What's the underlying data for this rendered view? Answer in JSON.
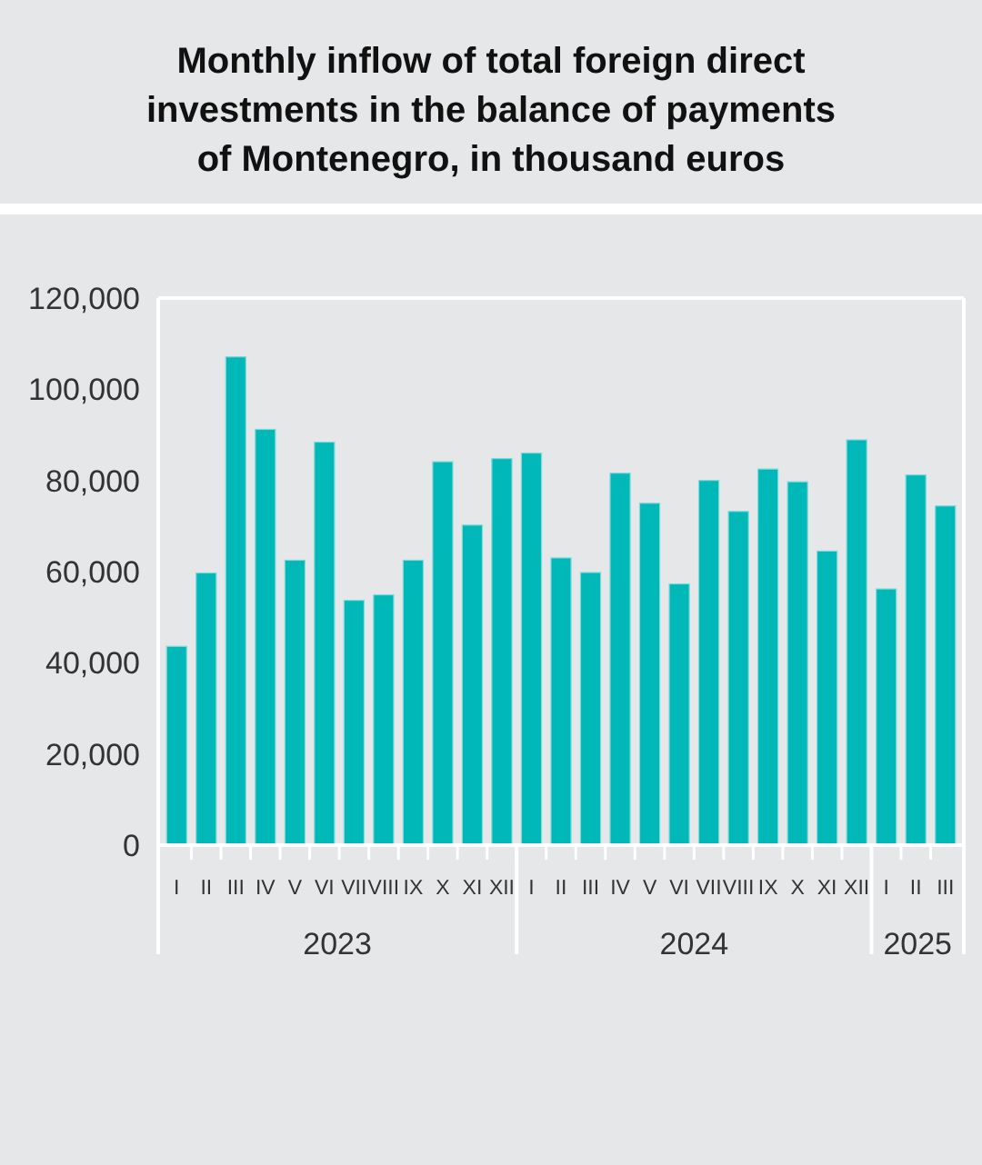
{
  "chart_data": {
    "type": "bar",
    "title": "Monthly inflow of total foreign direct investments in the balance of payments of Montenegro, in thousand euros",
    "categories": [
      "I",
      "II",
      "III",
      "IV",
      "V",
      "VI",
      "VII",
      "VIII",
      "IX",
      "X",
      "XI",
      "XII",
      "I",
      "II",
      "III",
      "IV",
      "V",
      "VI",
      "VII",
      "VIII",
      "IX",
      "X",
      "XI",
      "XII",
      "I",
      "II",
      "III"
    ],
    "values": [
      43600,
      59700,
      107100,
      91200,
      62500,
      88400,
      53700,
      54900,
      62500,
      84100,
      70200,
      84800,
      86000,
      63000,
      59800,
      81600,
      75000,
      57300,
      80000,
      73200,
      82500,
      79700,
      64500,
      88900,
      56200,
      81200,
      74400
    ],
    "color": "#00b8b8",
    "ylim": [
      0,
      120000
    ],
    "yticks": [
      {
        "value": 0,
        "label": "0"
      },
      {
        "value": 20000,
        "label": "20,000"
      },
      {
        "value": 40000,
        "label": "40,000"
      },
      {
        "value": 60000,
        "label": "60,000"
      },
      {
        "value": 80000,
        "label": "80,000"
      },
      {
        "value": 100000,
        "label": "100,000"
      },
      {
        "value": 120000,
        "label": "120,000"
      }
    ],
    "annotations": [
      "2023",
      "2024",
      "2025"
    ],
    "grid": false
  }
}
